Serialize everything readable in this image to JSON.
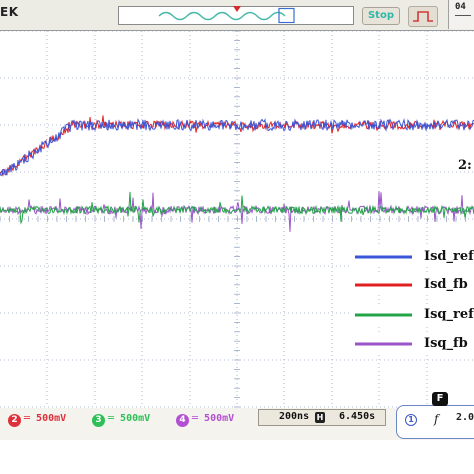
{
  "top_bar": {
    "brand_text": "EK",
    "stop_label": "Stop",
    "top_right_text": "04"
  },
  "waveform_overview": {
    "description_icon": "sine-wave-icon"
  },
  "screen": {
    "grid_color": "#9aa6c4",
    "partial_label": "2:"
  },
  "legend": [
    {
      "label": "Isd_ref",
      "color": "#3a55d8"
    },
    {
      "label": "Isd_fb",
      "color": "#e02020"
    },
    {
      "label": "Isq_ref",
      "color": "#22a447"
    },
    {
      "label": "Isq_fb",
      "color": "#9b55c9"
    }
  ],
  "channels": [
    {
      "number": "2",
      "scale": "500mV",
      "color": "#e0303a"
    },
    {
      "number": "3",
      "scale": "500mV",
      "color": "#2fbf57"
    },
    {
      "number": "4",
      "scale": "500mV",
      "color": "#b34fd3"
    }
  ],
  "timebase": {
    "time_per_div": "200ns",
    "h_icon": "H",
    "delay": "6.450s"
  },
  "frequency": {
    "tab_label": "F",
    "channel": "1",
    "symbol": "f",
    "value": "2.0"
  }
}
